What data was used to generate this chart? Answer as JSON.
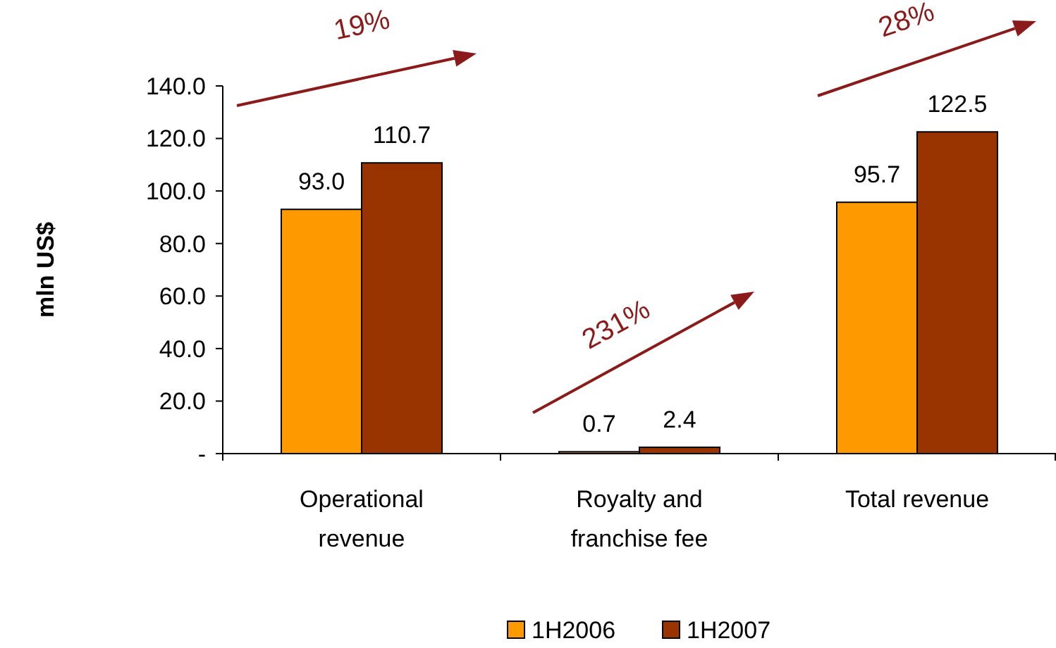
{
  "chart_data": {
    "type": "bar",
    "ylabel": "mln US$",
    "categories": [
      "Operational revenue",
      "Royalty and franchise fee",
      "Total revenue"
    ],
    "series": [
      {
        "name": "1H2006",
        "color": "#ff9900",
        "values": [
          93.0,
          0.7,
          95.7
        ],
        "value_labels": [
          "93.0",
          "0.7",
          "95.7"
        ]
      },
      {
        "name": "1H2007",
        "color": "#993300",
        "values": [
          110.7,
          2.4,
          122.5
        ],
        "value_labels": [
          "110.7",
          "2.4",
          "122.5"
        ]
      }
    ],
    "ylim": [
      0,
      140
    ],
    "yticks": [
      {
        "value": 0,
        "label": "-"
      },
      {
        "value": 20,
        "label": "20.0"
      },
      {
        "value": 40,
        "label": "40.0"
      },
      {
        "value": 60,
        "label": "60.0"
      },
      {
        "value": 80,
        "label": "80.0"
      },
      {
        "value": 100,
        "label": "100.0"
      },
      {
        "value": 120,
        "label": "120.0"
      },
      {
        "value": 140,
        "label": "140.0"
      }
    ],
    "grid": false,
    "legend": "bottom",
    "annotations": [
      "19%",
      "231%",
      "28%"
    ]
  }
}
